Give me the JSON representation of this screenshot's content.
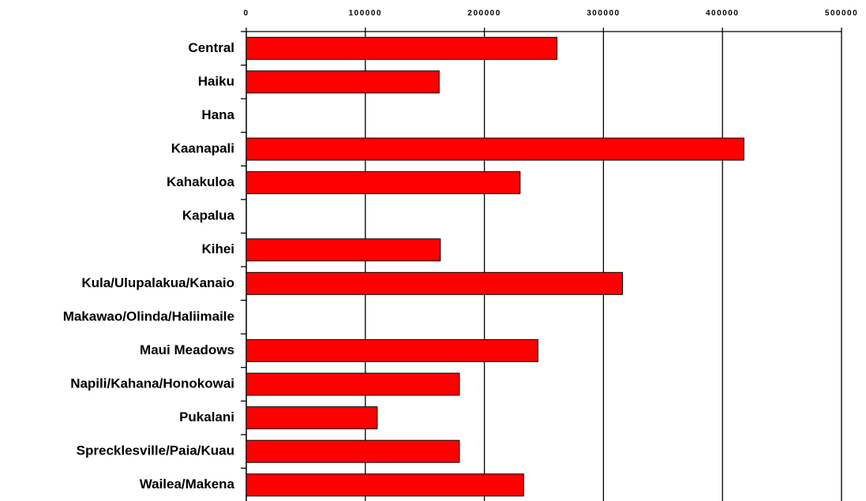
{
  "chart_data": {
    "type": "hbar",
    "categories": [
      "Central",
      "Haiku",
      "Hana",
      "Kaanapali",
      "Kahakuloa",
      "Kapalua",
      "Kihei",
      "Kula/Ulupalakua/Kanaio",
      "Makawao/Olinda/Haliimaile",
      "Maui Meadows",
      "Napili/Kahana/Honokowai",
      "Pukalani",
      "Sprecklesville/Paia/Kuau",
      "Wailea/Makena"
    ],
    "values": [
      261000,
      162000,
      null,
      418000,
      230000,
      null,
      163000,
      316000,
      null,
      245000,
      179000,
      110000,
      179000,
      233000
    ],
    "color": "#ff0000",
    "xlim": [
      0,
      500000
    ],
    "xticks": [
      0,
      100000,
      200000,
      300000,
      400000,
      500000
    ],
    "grid": true
  }
}
